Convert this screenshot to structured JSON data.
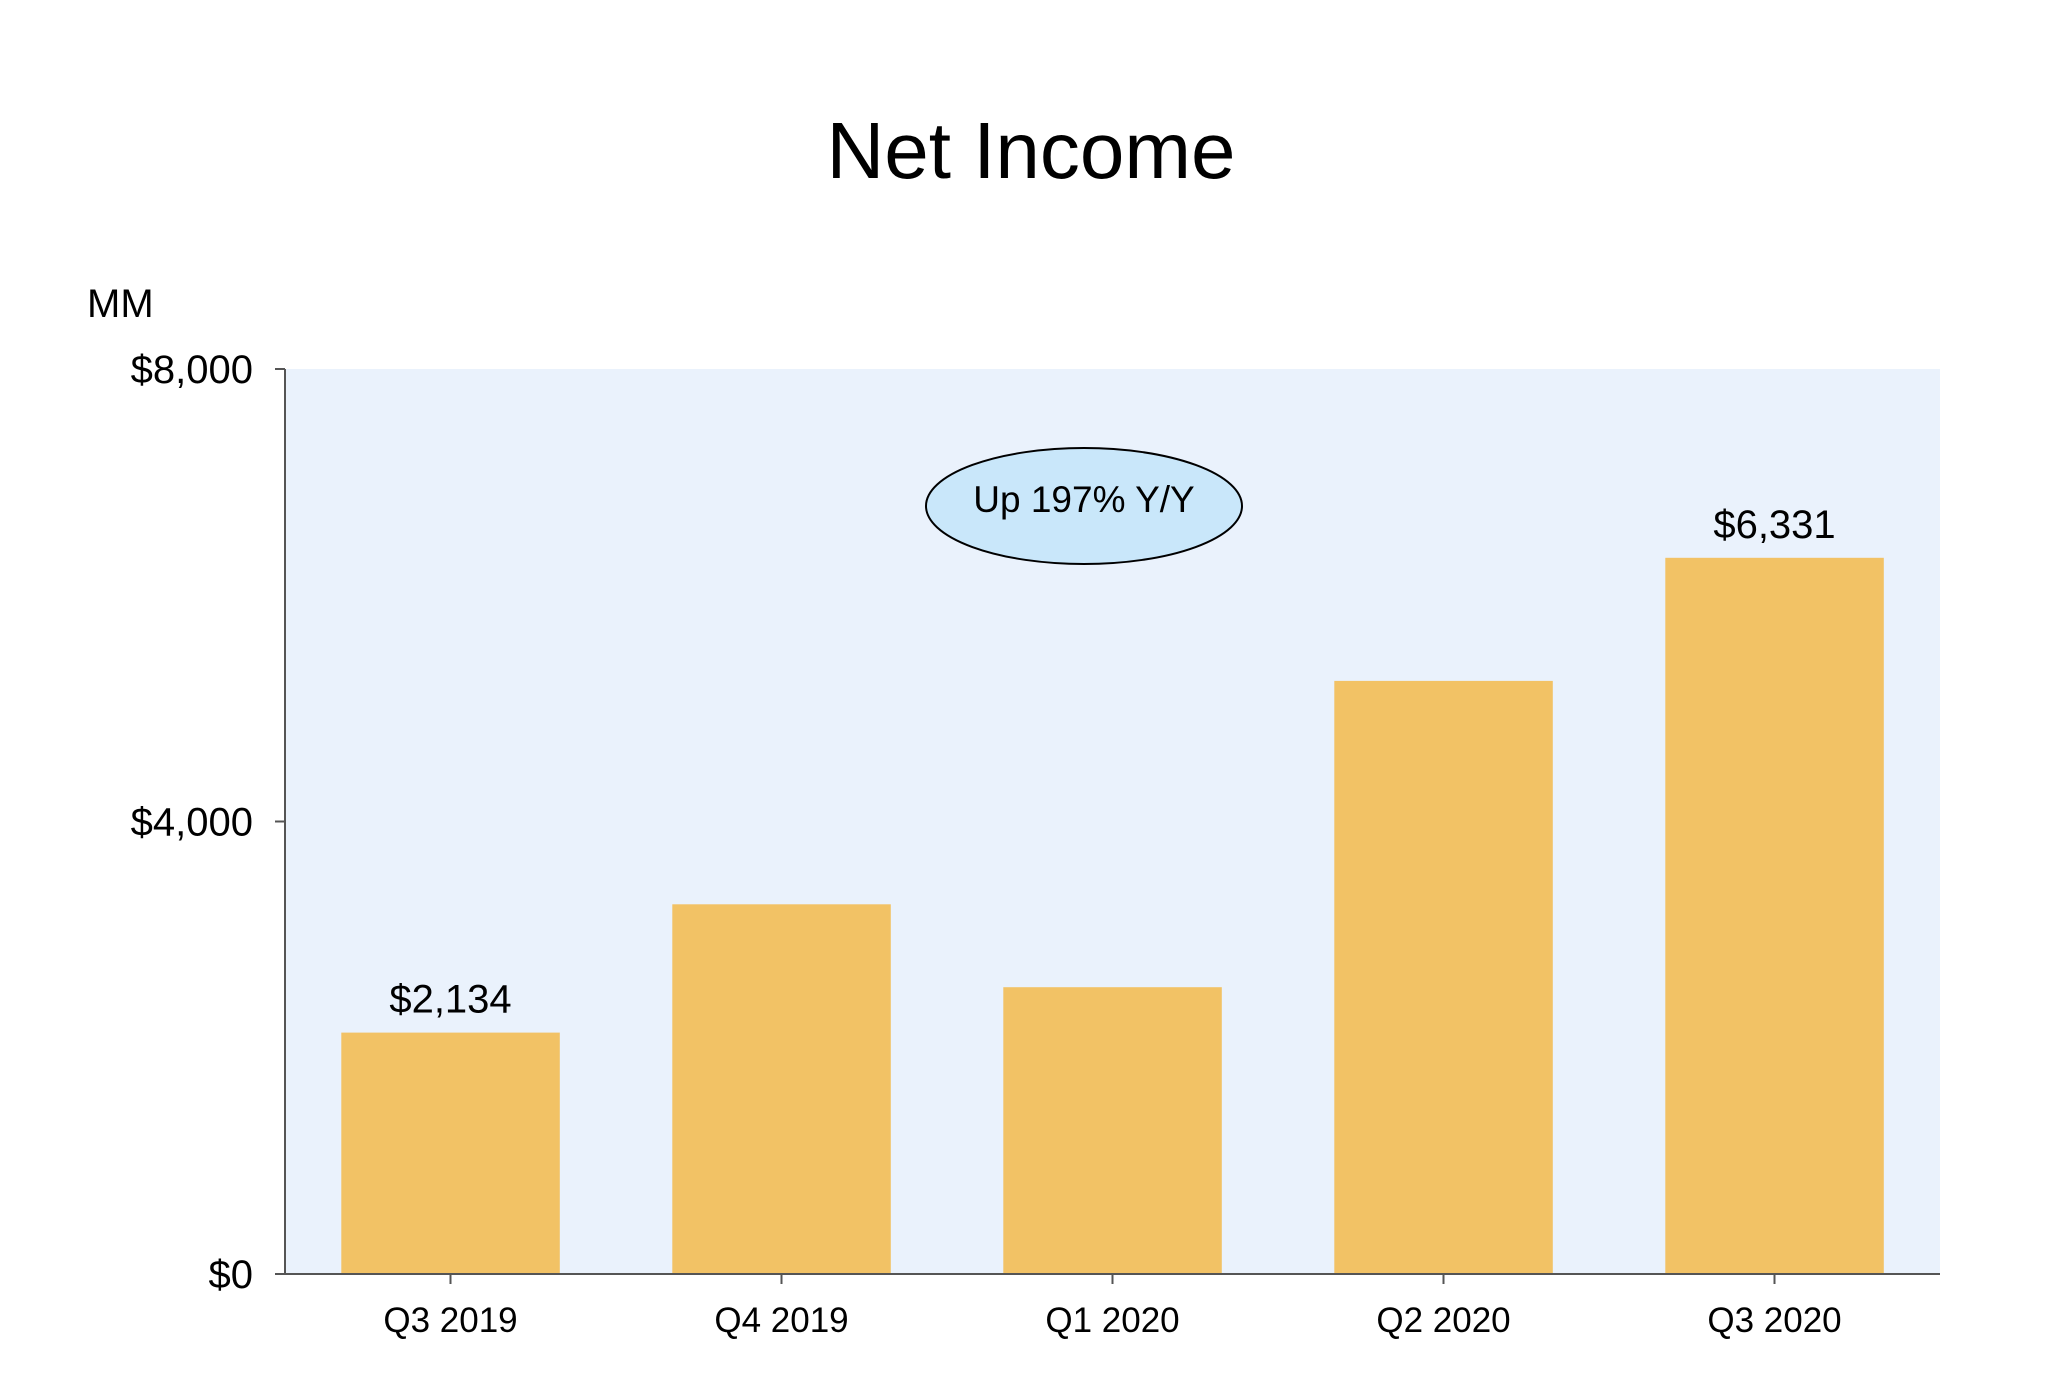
{
  "chart_data": {
    "type": "bar",
    "title": "Net Income",
    "unit_label": "MM",
    "categories": [
      "Q3 2019",
      "Q4 2019",
      "Q1 2020",
      "Q2 2020",
      "Q3 2020"
    ],
    "values": [
      2134,
      3268,
      2535,
      5243,
      6331
    ],
    "data_labels": [
      "$2,134",
      "",
      "",
      "",
      "$6,331"
    ],
    "yticks": [
      {
        "value": 0,
        "label": "$0"
      },
      {
        "value": 4000,
        "label": "$4,000"
      },
      {
        "value": 8000,
        "label": "$8,000"
      }
    ],
    "ylim": [
      0,
      8000
    ],
    "annotation": "Up 197% Y/Y",
    "grid": false,
    "colors": {
      "bar": "#F2C265",
      "plot_background": "#EAF2FC",
      "annotation_fill": "#C9E7FA",
      "axis": "#555555"
    }
  }
}
